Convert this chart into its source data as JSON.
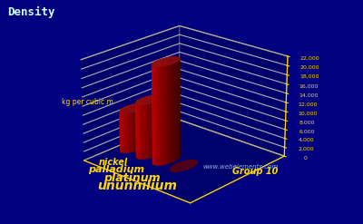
{
  "title": "Density",
  "ylabel": "kg per cubic m",
  "xlabel": "Group 10",
  "elements": [
    "nickel",
    "palladium",
    "platinum",
    "ununnilium"
  ],
  "values": [
    8908,
    12023,
    21450,
    0
  ],
  "yticks": [
    0,
    2000,
    4000,
    6000,
    8000,
    10000,
    12000,
    14000,
    16000,
    18000,
    20000,
    22000
  ],
  "ymax": 22000,
  "background_color": "#000080",
  "bar_color_side": "#CC0000",
  "bar_color_top": "#FF2222",
  "bar_color_bottom": "#880000",
  "grid_color": "#FFD700",
  "title_color": "#CCFFFF",
  "label_color": "#FFD700",
  "watermark": "www.webelements.com",
  "watermark_color": "#88BBDD",
  "elev": 22,
  "azim": -48
}
